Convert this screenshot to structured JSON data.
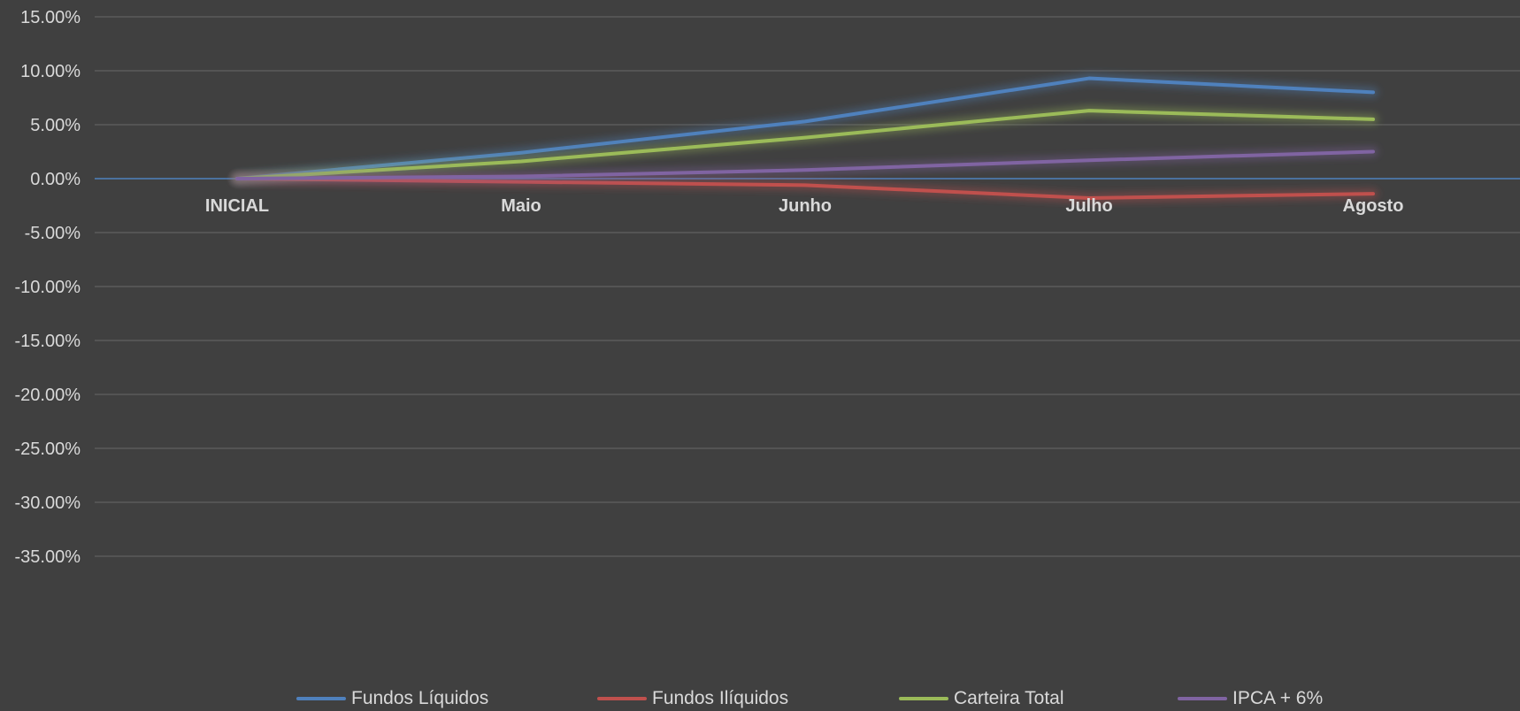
{
  "chart_data": {
    "type": "line",
    "categories": [
      "INICIAL",
      "Maio",
      "Junho",
      "Julho",
      "Agosto"
    ],
    "ylim": [
      -0.4,
      0.15
    ],
    "yticks": [
      0.15,
      0.1,
      0.05,
      0.0,
      -0.05,
      -0.1,
      -0.15,
      -0.2,
      -0.25,
      -0.3,
      -0.35
    ],
    "ytick_labels": [
      "15.00%",
      "10.00%",
      "5.00%",
      "0.00%",
      "-5.00%",
      "-10.00%",
      "-15.00%",
      "-20.00%",
      "-25.00%",
      "-30.00%",
      "-35.00%"
    ],
    "grid": true,
    "legend_position": "bottom",
    "series": [
      {
        "name": "Fundos Líquidos",
        "color": "#4f81bd",
        "values": [
          0.0,
          0.024,
          0.053,
          0.093,
          0.08
        ]
      },
      {
        "name": "Fundos Ilíquidos",
        "color": "#c0504d",
        "values": [
          0.0,
          -0.003,
          -0.006,
          -0.018,
          -0.014
        ]
      },
      {
        "name": "Carteira Total",
        "color": "#9bbb59",
        "values": [
          0.0,
          0.016,
          0.038,
          0.063,
          0.055
        ]
      },
      {
        "name": "IPCA + 6%",
        "color": "#8064a2",
        "values": [
          0.0,
          0.002,
          0.008,
          0.017,
          0.025
        ]
      }
    ]
  }
}
